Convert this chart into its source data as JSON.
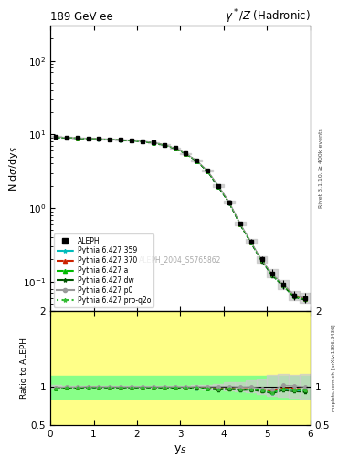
{
  "title_left": "189 GeV ee",
  "title_right": "γ*/Z (Hadronic)",
  "ylabel_main": "N dσ/dy_S",
  "ylabel_ratio": "Ratio to ALEPH",
  "xlabel": "y_S",
  "right_label_top": "Rivet 3.1.10, ≥ 400k events",
  "right_label_bot": "mcplots.cern.ch [arXiv:1306.3436]",
  "watermark": "ALEPH_2004_S5765862",
  "x_data": [
    0.125,
    0.375,
    0.625,
    0.875,
    1.125,
    1.375,
    1.625,
    1.875,
    2.125,
    2.375,
    2.625,
    2.875,
    3.125,
    3.375,
    3.625,
    3.875,
    4.125,
    4.375,
    4.625,
    4.875,
    5.125,
    5.375,
    5.625,
    5.875
  ],
  "aleph_y": [
    9.3,
    9.1,
    8.95,
    8.8,
    8.7,
    8.6,
    8.45,
    8.3,
    8.05,
    7.75,
    7.2,
    6.5,
    5.5,
    4.4,
    3.2,
    2.0,
    1.2,
    0.62,
    0.35,
    0.2,
    0.13,
    0.09,
    0.065,
    0.06
  ],
  "aleph_err_lo": [
    0.15,
    0.12,
    0.1,
    0.1,
    0.09,
    0.09,
    0.09,
    0.09,
    0.09,
    0.09,
    0.09,
    0.09,
    0.09,
    0.09,
    0.09,
    0.07,
    0.06,
    0.035,
    0.025,
    0.018,
    0.016,
    0.012,
    0.009,
    0.009
  ],
  "aleph_err_hi": [
    0.2,
    0.15,
    0.12,
    0.12,
    0.1,
    0.1,
    0.1,
    0.1,
    0.1,
    0.1,
    0.1,
    0.1,
    0.1,
    0.1,
    0.1,
    0.08,
    0.07,
    0.04,
    0.03,
    0.02,
    0.02,
    0.015,
    0.01,
    0.01
  ],
  "pythia359_y": [
    9.05,
    8.98,
    8.85,
    8.72,
    8.62,
    8.52,
    8.38,
    8.23,
    7.98,
    7.68,
    7.13,
    6.43,
    5.43,
    4.33,
    3.13,
    1.93,
    1.17,
    0.598,
    0.338,
    0.19,
    0.12,
    0.087,
    0.062,
    0.057
  ],
  "pythia370_y": [
    9.18,
    9.03,
    8.88,
    8.78,
    8.66,
    8.56,
    8.41,
    8.26,
    8.01,
    7.71,
    7.16,
    6.46,
    5.46,
    4.36,
    3.16,
    1.96,
    1.18,
    0.604,
    0.342,
    0.192,
    0.123,
    0.089,
    0.064,
    0.058
  ],
  "pythia_a_y": [
    9.12,
    9.02,
    8.88,
    8.76,
    8.65,
    8.55,
    8.4,
    8.25,
    8.0,
    7.7,
    7.15,
    6.45,
    5.45,
    4.35,
    3.15,
    1.95,
    1.178,
    0.6,
    0.34,
    0.191,
    0.121,
    0.088,
    0.063,
    0.057
  ],
  "pythia_dw_y": [
    9.08,
    8.98,
    8.83,
    8.73,
    8.62,
    8.52,
    8.37,
    8.22,
    7.97,
    7.67,
    7.12,
    6.42,
    5.42,
    4.32,
    3.12,
    1.92,
    1.165,
    0.593,
    0.336,
    0.188,
    0.119,
    0.086,
    0.061,
    0.056
  ],
  "pythia_p0_y": [
    9.22,
    9.08,
    8.93,
    8.83,
    8.71,
    8.61,
    8.46,
    8.31,
    8.06,
    7.76,
    7.21,
    6.51,
    5.51,
    4.41,
    3.21,
    2.01,
    1.21,
    0.619,
    0.35,
    0.196,
    0.125,
    0.092,
    0.066,
    0.06
  ],
  "pythia_proq2o_y": [
    9.1,
    9.0,
    8.85,
    8.75,
    8.64,
    8.54,
    8.39,
    8.24,
    7.99,
    7.69,
    7.14,
    6.44,
    5.44,
    4.34,
    3.14,
    1.94,
    1.17,
    0.596,
    0.338,
    0.19,
    0.12,
    0.087,
    0.062,
    0.057
  ],
  "xlim": [
    0,
    6.0
  ],
  "ylim_main": [
    0.04,
    300
  ],
  "ylim_ratio": [
    0.5,
    2.0
  ],
  "bg_yellow": "#ffff88",
  "bg_green": "#88ff88",
  "color_aleph": "#000000",
  "color_359": "#00bbbb",
  "color_370": "#cc2200",
  "color_a": "#00bb00",
  "color_dw": "#005500",
  "color_p0": "#999999",
  "color_proq2o": "#33bb33"
}
